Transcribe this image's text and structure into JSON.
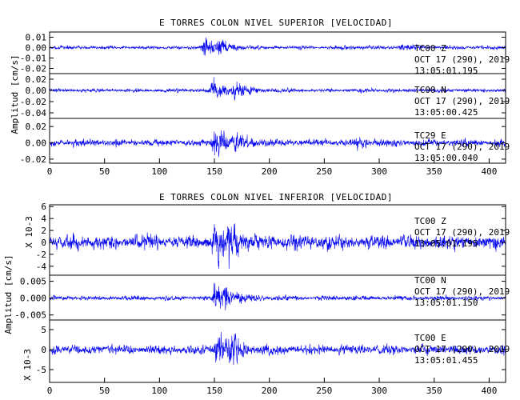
{
  "colors": {
    "trace": "#0000ee",
    "axis": "#000000",
    "background": "#ffffff"
  },
  "chart_data": [
    {
      "type": "line",
      "title": "E TORRES COLON NIVEL SUPERIOR [VELOCIDAD]",
      "ylabel": "Amplitud [cm/s]",
      "xlim": [
        0,
        415
      ],
      "xticks": [
        "0",
        "50",
        "100",
        "150",
        "200",
        "250",
        "300",
        "350",
        "400"
      ],
      "panels": [
        {
          "name": "TC00 Z",
          "info": [
            "TC00   Z",
            "OCT 17 (290), 2019",
            "13:05:01.195"
          ],
          "ylim": [
            -0.025,
            0.015
          ],
          "yticks": [
            "0.01",
            "0.00",
            "-0.01",
            "-0.02"
          ],
          "baseline": 0.0,
          "background_amplitude": 0.002,
          "events": [
            {
              "t": 140,
              "amplitude": 0.012
            },
            {
              "t": 155,
              "amplitude": 0.007
            },
            {
              "t": 320,
              "amplitude": 0.004
            }
          ]
        },
        {
          "name": "TC00 N",
          "info": [
            "TC00   N",
            "OCT 17 (290), 2019",
            "13:05:00.425"
          ],
          "ylim": [
            -0.05,
            0.03
          ],
          "yticks": [
            "0.02",
            "0.00",
            "-0.02",
            "-0.04"
          ],
          "baseline": 0.0,
          "background_amplitude": 0.004,
          "events": [
            {
              "t": 148,
              "amplitude": 0.02
            },
            {
              "t": 168,
              "amplitude": 0.018
            }
          ]
        },
        {
          "name": "TC29 E",
          "info": [
            "TC29   E",
            "OCT 17 (290), 2019",
            "13:05:00.040"
          ],
          "ylim": [
            -0.025,
            0.03
          ],
          "yticks": [
            "0.02",
            "0.00",
            "-0.02"
          ],
          "baseline": 0.0,
          "background_amplitude": 0.005,
          "events": [
            {
              "t": 150,
              "amplitude": 0.02
            },
            {
              "t": 170,
              "amplitude": 0.012
            },
            {
              "t": 280,
              "amplitude": 0.006
            }
          ]
        }
      ]
    },
    {
      "type": "line",
      "title": "E TORRES COLON NIVEL INFERIOR [VELOCIDAD]",
      "ylabel": "Amplitud [cm/s]",
      "xlim": [
        0,
        415
      ],
      "xticks": [
        "0",
        "50",
        "100",
        "150",
        "200",
        "250",
        "300",
        "350",
        "400"
      ],
      "panels": [
        {
          "name": "TC00 Z",
          "info": [
            "TC00   Z",
            "OCT 17 (290), 2019",
            "13:05:01.195"
          ],
          "ylim": [
            -5.5,
            6.3
          ],
          "yticks": [
            "6",
            "4",
            "2",
            "0",
            "-2",
            "-4"
          ],
          "scale_label": "X 10-3",
          "baseline": 0.0,
          "background_amplitude": 1.4,
          "events": [
            {
              "t": 150,
              "amplitude": 3.8
            },
            {
              "t": 162,
              "amplitude": 2.2
            }
          ]
        },
        {
          "name": "TC00 N",
          "info": [
            "TC00   N",
            "OCT 17 (290), 2019",
            "13:05:01.150"
          ],
          "ylim": [
            -0.0065,
            0.0068
          ],
          "yticks": [
            "0.005",
            "0.000",
            "-0.005"
          ],
          "baseline": 0.0,
          "background_amplitude": 0.0008,
          "events": [
            {
              "t": 150,
              "amplitude": 0.0045
            },
            {
              "t": 160,
              "amplitude": 0.002
            }
          ]
        },
        {
          "name": "TC00 E",
          "info": [
            "TC00   E",
            "OCT 17 (290), 2019",
            "13:05:01.455"
          ],
          "ylim": [
            -8.2,
            7.4
          ],
          "yticks": [
            "5",
            "0",
            "-5"
          ],
          "scale_label": "X 10-3",
          "baseline": 0.0,
          "background_amplitude": 1.4,
          "events": [
            {
              "t": 152,
              "amplitude": 4.5
            },
            {
              "t": 165,
              "amplitude": 2.5
            }
          ]
        }
      ]
    }
  ]
}
